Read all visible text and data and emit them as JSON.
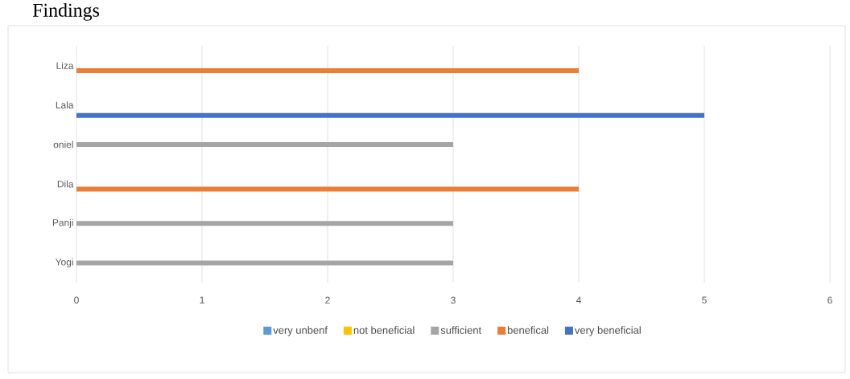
{
  "chart_data": {
    "type": "bar",
    "orientation": "horizontal",
    "title": "Findings",
    "categories": [
      "Liza",
      "Lala",
      "oniel",
      "Dila",
      "Panji",
      "Yogi"
    ],
    "series": [
      {
        "name": "very unbenf",
        "color": "#5b9bd5",
        "values": [
          null,
          null,
          null,
          null,
          null,
          null
        ]
      },
      {
        "name": "not beneficial",
        "color": "#ffc000",
        "values": [
          null,
          null,
          null,
          null,
          null,
          null
        ]
      },
      {
        "name": "sufficient",
        "color": "#a5a5a5",
        "values": [
          null,
          null,
          3,
          null,
          3,
          3
        ]
      },
      {
        "name": "benefical",
        "color": "#ed7d31",
        "values": [
          4,
          null,
          null,
          4,
          null,
          null
        ]
      },
      {
        "name": "very beneficial",
        "color": "#4472c4",
        "values": [
          null,
          5,
          null,
          null,
          null,
          null
        ]
      }
    ],
    "xlim": [
      0,
      6
    ],
    "xticks": [
      0,
      1,
      2,
      3,
      4,
      5,
      6
    ],
    "grid": "x",
    "legend": "bottom"
  }
}
